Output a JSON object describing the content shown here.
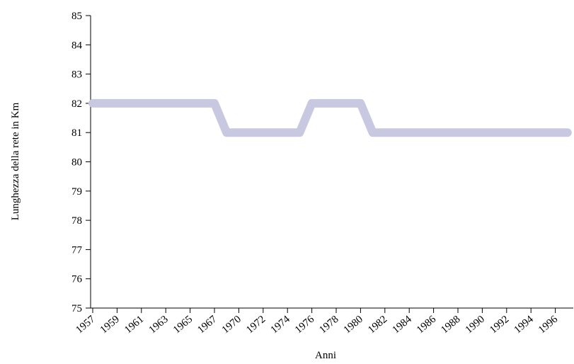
{
  "chart_data": {
    "type": "line",
    "x_label": "Anni",
    "y_label": "Lunghezza della rete in Km",
    "categories": [
      "1957",
      null,
      "1959",
      null,
      "1961",
      null,
      "1963",
      null,
      "1965",
      null,
      "1967",
      null,
      "1970",
      null,
      "1972",
      null,
      "1974",
      null,
      "1976",
      null,
      "1978",
      null,
      "1980",
      null,
      "1982",
      null,
      "1984",
      null,
      "1986",
      null,
      "1988",
      null,
      "1990",
      null,
      "1992",
      null,
      "1994",
      null,
      "1996",
      null
    ],
    "series": [
      {
        "color": "#c8c8e0",
        "values": [
          82,
          82,
          82,
          82,
          82,
          82,
          82,
          82,
          82,
          82,
          82,
          81,
          81,
          81,
          81,
          81,
          81,
          81,
          82,
          82,
          82,
          82,
          82,
          81,
          81,
          81,
          81,
          81,
          81,
          81,
          81,
          81,
          81,
          81,
          81,
          81,
          81,
          81,
          81,
          81
        ]
      }
    ],
    "ylim": [
      75,
      85
    ],
    "yticks": [
      75,
      76,
      77,
      78,
      79,
      80,
      81,
      82,
      83,
      84,
      85
    ]
  }
}
